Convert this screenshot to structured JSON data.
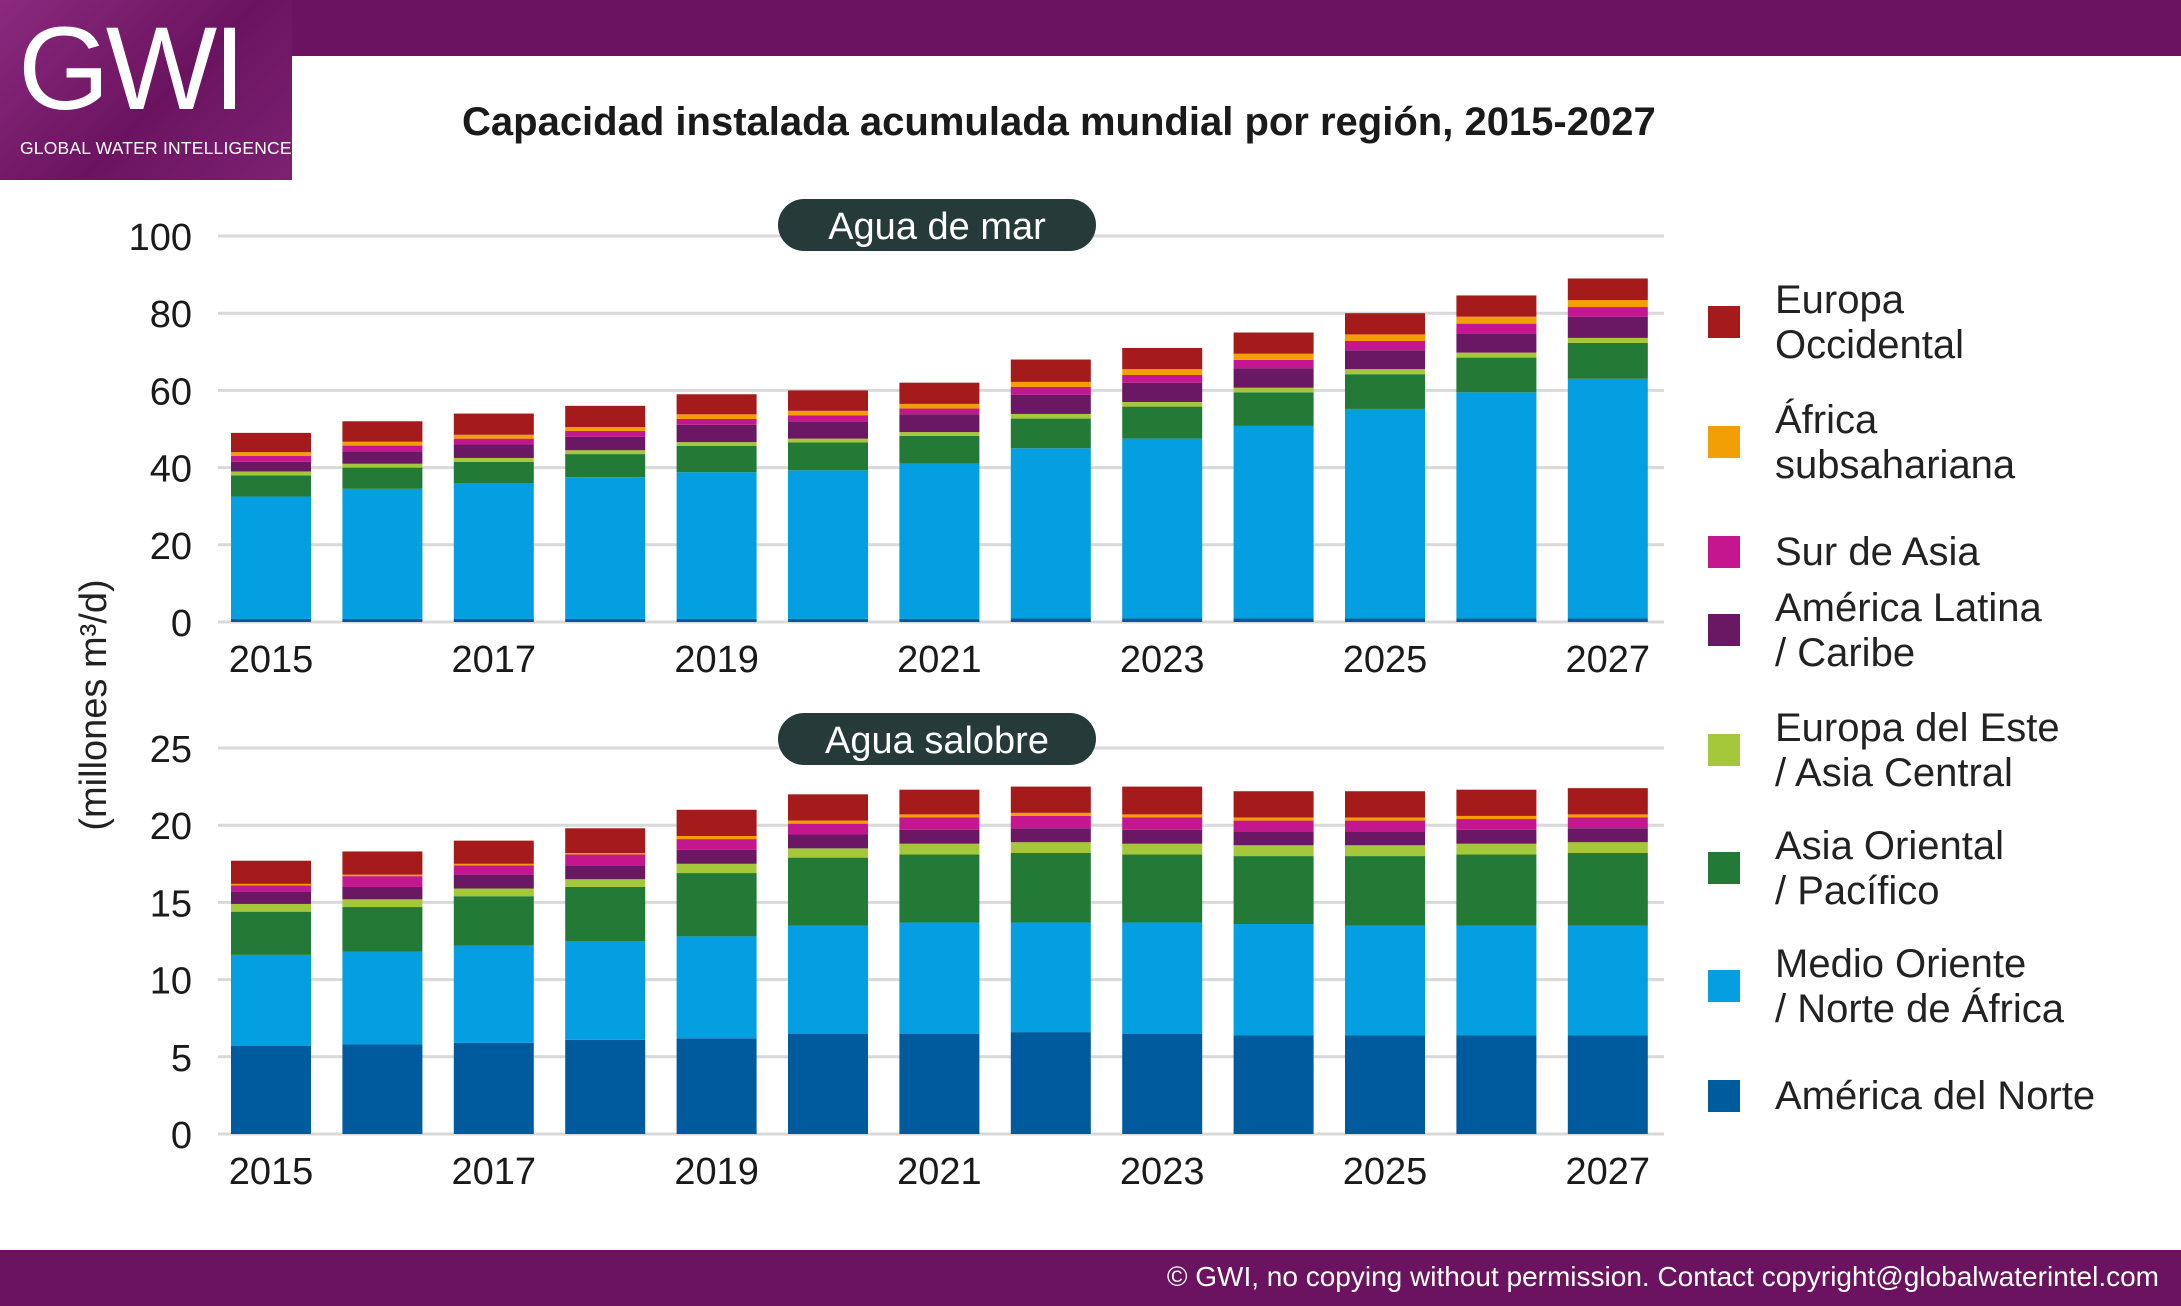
{
  "header": {
    "logo_text": "GWI",
    "logo_subtitle": "GLOBAL WATER INTELLIGENCE",
    "title": "Capacidad instalada acumulada mundial por región, 2015-2027"
  },
  "footer": {
    "copyright": "© GWI, no copying without permission. Contact copyright@globalwaterintel.com"
  },
  "colors": {
    "brand": "#6b1360",
    "grid": "#d9d9d9",
    "panel_label_bg": "#263a3a"
  },
  "legend": {
    "items": [
      {
        "line1": "Europa",
        "line2": "Occidental",
        "color": "#a51b1b"
      },
      {
        "line1": "África",
        "line2": "subsahariana",
        "color": "#f29f05"
      },
      {
        "line1": "Sur de Asia",
        "line2": "",
        "color": "#c4168e"
      },
      {
        "line1": "América Latina",
        "line2": "/ Caribe",
        "color": "#6a1864"
      },
      {
        "line1": "Europa del Este",
        "line2": "/ Asia Central",
        "color": "#a5c73a"
      },
      {
        "line1": "Asia Oriental",
        "line2": "/ Pacífico",
        "color": "#237a36"
      },
      {
        "line1": "Medio Oriente",
        "line2": "/ Norte de África",
        "color": "#049fe0"
      },
      {
        "line1": "América del Norte",
        "line2": "",
        "color": "#005b9e"
      }
    ]
  },
  "chart_data": [
    {
      "type": "bar",
      "stacked": true,
      "title": "Agua de mar",
      "ylabel": "(millones m³/d)",
      "xlabel": "",
      "ylim": [
        0,
        100
      ],
      "yticks": [
        0,
        20,
        40,
        60,
        80,
        100
      ],
      "categories": [
        "2015",
        "2016",
        "2017",
        "2018",
        "2019",
        "2020",
        "2021",
        "2022",
        "2023",
        "2024",
        "2025",
        "2026",
        "2027"
      ],
      "xtick_labels": [
        "2015",
        "",
        "2017",
        "",
        "2019",
        "",
        "2021",
        "",
        "2023",
        "",
        "2025",
        "",
        "2027"
      ],
      "series": [
        {
          "name": "América del Norte",
          "values": [
            0.8,
            0.8,
            0.8,
            0.8,
            0.8,
            0.8,
            0.8,
            0.9,
            0.9,
            0.9,
            0.9,
            0.9,
            0.9
          ]
        },
        {
          "name": "Medio Oriente / Norte de África",
          "values": [
            31.7,
            33.7,
            35.2,
            36.7,
            38.0,
            38.5,
            40.2,
            44.1,
            46.6,
            49.9,
            54.3,
            58.6,
            62.1
          ]
        },
        {
          "name": "Asia Oriental / Pacífico",
          "values": [
            5.5,
            5.5,
            5.5,
            6.0,
            6.8,
            7.2,
            7.2,
            7.7,
            8.3,
            8.7,
            9.0,
            9.0,
            9.3
          ]
        },
        {
          "name": "Europa del Este / Asia Central",
          "values": [
            1.0,
            1.0,
            1.0,
            1.0,
            1.0,
            1.0,
            1.0,
            1.2,
            1.2,
            1.2,
            1.3,
            1.3,
            1.3
          ]
        },
        {
          "name": "América Latina / Caribe",
          "values": [
            2.5,
            3.2,
            3.5,
            3.5,
            4.5,
            4.5,
            4.6,
            5.0,
            5.0,
            5.0,
            4.9,
            5.0,
            5.5
          ]
        },
        {
          "name": "Sur de Asia",
          "values": [
            1.5,
            1.5,
            1.5,
            1.5,
            1.5,
            1.5,
            1.5,
            2.0,
            2.0,
            2.2,
            2.4,
            2.5,
            2.5
          ]
        },
        {
          "name": "África subsahariana",
          "values": [
            1.0,
            1.0,
            1.0,
            1.0,
            1.2,
            1.2,
            1.2,
            1.3,
            1.5,
            1.6,
            1.7,
            1.8,
            1.8
          ]
        },
        {
          "name": "Europa Occidental",
          "values": [
            5.0,
            5.3,
            5.5,
            5.5,
            5.2,
            5.3,
            5.5,
            5.8,
            5.5,
            5.5,
            5.5,
            5.5,
            5.6
          ]
        }
      ]
    },
    {
      "type": "bar",
      "stacked": true,
      "title": "Agua salobre",
      "ylabel": "(millones m³/d)",
      "xlabel": "",
      "ylim": [
        0,
        25
      ],
      "yticks": [
        0,
        5,
        10,
        15,
        20,
        25
      ],
      "categories": [
        "2015",
        "2016",
        "2017",
        "2018",
        "2019",
        "2020",
        "2021",
        "2022",
        "2023",
        "2024",
        "2025",
        "2026",
        "2027"
      ],
      "xtick_labels": [
        "2015",
        "",
        "2017",
        "",
        "2019",
        "",
        "2021",
        "",
        "2023",
        "",
        "2025",
        "",
        "2027"
      ],
      "series": [
        {
          "name": "América del Norte",
          "values": [
            5.7,
            5.8,
            5.9,
            6.1,
            6.2,
            6.5,
            6.5,
            6.6,
            6.5,
            6.4,
            6.4,
            6.4,
            6.4
          ]
        },
        {
          "name": "Medio Oriente / Norte de África",
          "values": [
            5.9,
            6.0,
            6.3,
            6.4,
            6.6,
            7.0,
            7.2,
            7.1,
            7.2,
            7.2,
            7.1,
            7.1,
            7.1
          ]
        },
        {
          "name": "Asia Oriental / Pacífico",
          "values": [
            2.8,
            2.9,
            3.2,
            3.5,
            4.1,
            4.4,
            4.4,
            4.5,
            4.4,
            4.4,
            4.5,
            4.6,
            4.7
          ]
        },
        {
          "name": "Europa del Este / Asia Central",
          "values": [
            0.5,
            0.5,
            0.5,
            0.5,
            0.6,
            0.6,
            0.7,
            0.7,
            0.7,
            0.7,
            0.7,
            0.7,
            0.7
          ]
        },
        {
          "name": "América Latina / Caribe",
          "values": [
            0.8,
            0.8,
            0.9,
            0.9,
            0.9,
            0.9,
            0.9,
            0.9,
            0.9,
            0.9,
            0.9,
            0.9,
            0.9
          ]
        },
        {
          "name": "Sur de Asia",
          "values": [
            0.4,
            0.7,
            0.6,
            0.7,
            0.7,
            0.7,
            0.8,
            0.8,
            0.8,
            0.7,
            0.7,
            0.7,
            0.7
          ]
        },
        {
          "name": "África subsahariana",
          "values": [
            0.1,
            0.1,
            0.1,
            0.1,
            0.2,
            0.2,
            0.2,
            0.2,
            0.2,
            0.2,
            0.2,
            0.2,
            0.2
          ]
        },
        {
          "name": "Europa Occidental",
          "values": [
            1.5,
            1.5,
            1.5,
            1.6,
            1.7,
            1.7,
            1.6,
            1.7,
            1.8,
            1.7,
            1.7,
            1.7,
            1.7
          ]
        }
      ]
    }
  ]
}
